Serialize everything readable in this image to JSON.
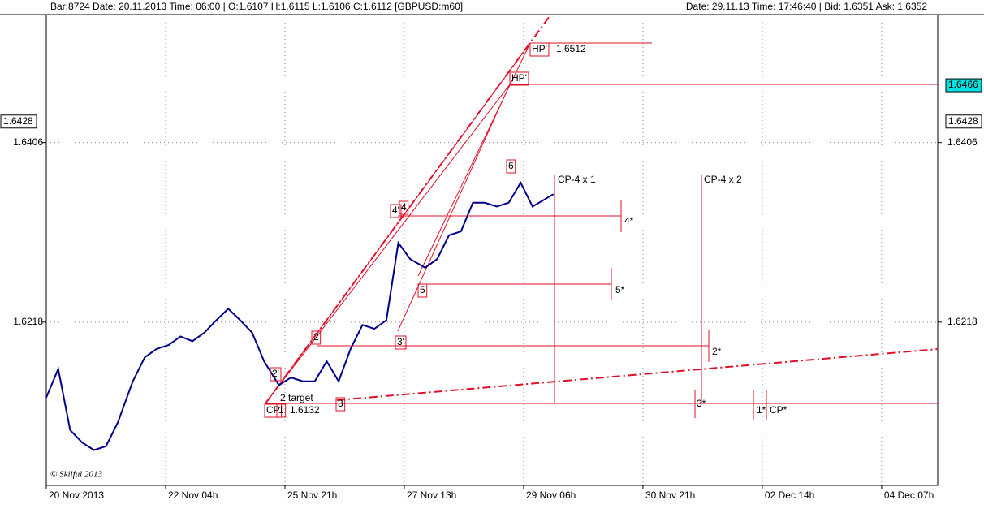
{
  "chart_data": {
    "type": "line",
    "header_left": "Bar:8724  Date: 20.11.2013  Time: 06:00  | O:1.6107 H:1.6115 L:1.6106 C:1.6112   [GBPUSD:m60]",
    "header_right": "Date: 29.11.13 Time: 17:46:40 | Bid: 1.6351 Ask: 1.6352",
    "copyright": "© Skilful 2013",
    "x": [
      0,
      4,
      8,
      12,
      16,
      20,
      24,
      29,
      33,
      37,
      41,
      45,
      49,
      53,
      57,
      61,
      65,
      69,
      73,
      78,
      82,
      86,
      90,
      94,
      98,
      102,
      106,
      110,
      114,
      118,
      122,
      127,
      131,
      135,
      139,
      143,
      147,
      151,
      155,
      159,
      163,
      170
    ],
    "series": [
      {
        "name": "GBPUSD",
        "color": "#00008b",
        "values": [
          1.6139,
          1.6169,
          1.6105,
          1.6092,
          1.6084,
          1.6088,
          1.6113,
          1.6156,
          1.6181,
          1.619,
          1.6194,
          1.6203,
          1.6198,
          1.6207,
          1.622,
          1.6232,
          1.622,
          1.6207,
          1.6177,
          1.6152,
          1.616,
          1.6156,
          1.6156,
          1.6177,
          1.6156,
          1.619,
          1.6215,
          1.6211,
          1.622,
          1.6301,
          1.6284,
          1.6275,
          1.6284,
          1.6309,
          1.6313,
          1.6343,
          1.6343,
          1.6339,
          1.6343,
          1.6364,
          1.6339,
          1.6352
        ]
      }
    ],
    "xlim": [
      0,
      298.8
    ],
    "xticks": [
      {
        "value": 0,
        "label": "20 Nov 2013"
      },
      {
        "value": 40,
        "label": "22 Nov 04h"
      },
      {
        "value": 80,
        "label": "25 Nov 21h"
      },
      {
        "value": 120,
        "label": "27 Nov 13h"
      },
      {
        "value": 160,
        "label": "29 Nov 06h"
      },
      {
        "value": 200,
        "label": "30 Nov 21h"
      },
      {
        "value": 240,
        "label": "02 Dec 14h"
      },
      {
        "value": 280,
        "label": "04 Dec 07h"
      }
    ],
    "ylim": [
      1.6047,
      1.654
    ],
    "yticks": [
      1.6218,
      1.6406
    ],
    "grid": true,
    "price_markers": [
      {
        "value": 1.6466,
        "side": "right",
        "color": "#00e0e0"
      },
      {
        "value": 1.6428,
        "side": "right",
        "color": "#ffffff"
      },
      {
        "value": 1.6428,
        "side": "left",
        "color": "#ffffff"
      }
    ],
    "annotations": [
      {
        "text": "HP'",
        "boxed": true
      },
      {
        "text": "1.6512",
        "boxed": false
      },
      {
        "text": "HP'",
        "boxed": true
      },
      {
        "text": "6",
        "boxed": true
      },
      {
        "text": "CP-4 x 1",
        "boxed": false
      },
      {
        "text": "CP-4 x 2",
        "boxed": false
      },
      {
        "text": "4'",
        "boxed": true
      },
      {
        "text": "4",
        "boxed": true
      },
      {
        "text": "4*",
        "boxed": false
      },
      {
        "text": "5",
        "boxed": true
      },
      {
        "text": "5*",
        "boxed": false
      },
      {
        "text": "2",
        "boxed": true
      },
      {
        "text": "3'",
        "boxed": true
      },
      {
        "text": "2*",
        "boxed": false
      },
      {
        "text": "2'",
        "boxed": true
      },
      {
        "text": "2 target",
        "boxed": false
      },
      {
        "text": "CP",
        "boxed": true
      },
      {
        "text": "1",
        "boxed": true
      },
      {
        "text": "1.6132",
        "boxed": false
      },
      {
        "text": "3",
        "boxed": true
      },
      {
        "text": "3*",
        "boxed": false
      },
      {
        "text": "1*",
        "boxed": false
      },
      {
        "text": "CP*",
        "boxed": false
      }
    ]
  }
}
